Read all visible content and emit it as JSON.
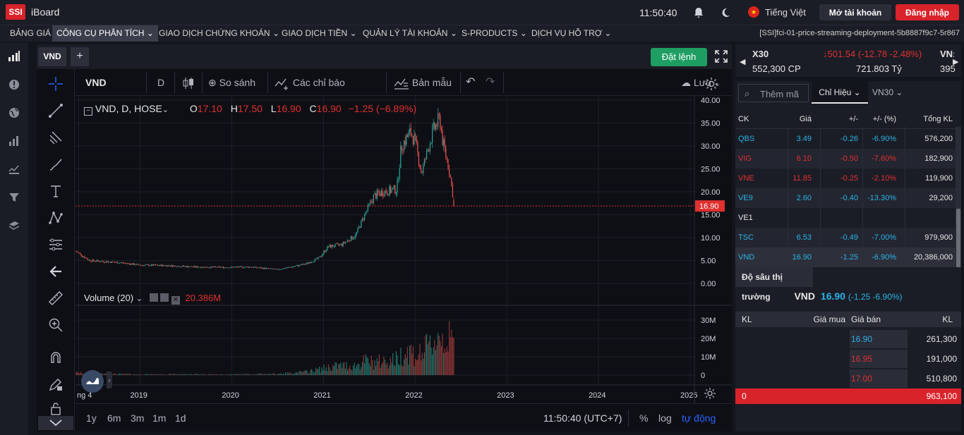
{
  "header": {
    "logo": "SSI",
    "app_name": "iBoard",
    "clock": "11:50:40",
    "language": "Tiếng Việt",
    "open_account": "Mở tài khoản",
    "login": "Đăng nhập"
  },
  "menu": {
    "items": [
      "BẢNG GIÁ",
      "CÔNG CỤ PHÂN TÍCH",
      "GIAO DỊCH CHỨNG KHOÁN",
      "GIAO DỊCH TIỀN",
      "QUẢN LÝ TÀI KHOẢN",
      "S-PRODUCTS",
      "DỊCH VỤ HỖ TRỢ"
    ],
    "deployment": "[SSI]fci-01-price-streaming-deployment-5b8887f9c7-5r867"
  },
  "chart_tab": {
    "symbol": "VND",
    "add": "+",
    "order_button": "Đặt lệnh"
  },
  "toolbar": {
    "symbol": "VND",
    "interval": "D",
    "compare": "So sánh",
    "indicators": "Các chỉ báo",
    "templates": "Bản mẫu",
    "save": "Lưu"
  },
  "legend": {
    "title": "VND, D, HOSE",
    "o_label": "O",
    "o": "17.10",
    "h_label": "H",
    "h": "17.50",
    "l_label": "L",
    "l": "16.90",
    "c_label": "C",
    "c": "16.90",
    "change": "−1.25 (−6.89%)",
    "volume_label": "Volume (20)",
    "volume_value": "20.386M",
    "last_price": "16.90"
  },
  "chart_data": {
    "type": "candlestick",
    "price_axis": {
      "ticks": [
        "40.00",
        "35.00",
        "30.00",
        "25.00",
        "20.00",
        "15.00",
        "10.00",
        "5.00",
        "0.00"
      ],
      "ylim": [
        0,
        40
      ]
    },
    "volume_axis": {
      "ticks": [
        "30M",
        "20M",
        "10M",
        "0"
      ],
      "ylim": [
        0,
        30
      ]
    },
    "x_ticks": [
      "ng 4",
      "2019",
      "2020",
      "2021",
      "2022",
      "2023",
      "2024",
      "2025"
    ],
    "x": [
      2018.3,
      2018.45,
      2018.6,
      2018.8,
      2019.0,
      2019.3,
      2019.6,
      2019.9,
      2020.2,
      2020.5,
      2020.8,
      2020.95,
      2021.05,
      2021.2,
      2021.35,
      2021.45,
      2021.55,
      2021.65,
      2021.8,
      2021.85,
      2021.95,
      2022.0,
      2022.07,
      2022.15,
      2022.2,
      2022.27,
      2022.3,
      2022.37,
      2022.43
    ],
    "close": [
      7.0,
      5.0,
      4.8,
      4.5,
      4.0,
      3.9,
      3.6,
      3.5,
      3.6,
      3.0,
      4.2,
      5.5,
      8.0,
      8.5,
      10.5,
      15.0,
      19.0,
      20.0,
      20.5,
      30.0,
      33.0,
      31.0,
      24.0,
      30.0,
      33.5,
      36.0,
      31.0,
      25.0,
      16.9
    ],
    "volume": [
      1.5,
      1.0,
      0.8,
      0.6,
      0.5,
      0.5,
      0.6,
      0.4,
      0.6,
      0.8,
      2.0,
      3.5,
      5,
      6,
      6,
      9,
      8,
      9,
      10,
      13,
      16,
      12,
      14,
      18,
      21,
      26,
      24,
      22,
      20.386
    ],
    "last_price": 16.9
  },
  "ranges": {
    "r1": "1y",
    "r2": "6m",
    "r3": "3m",
    "r4": "1m",
    "r5": "1d",
    "time": "11:50:40 (UTC+7)",
    "percent": "%",
    "log": "log",
    "auto": "tự động"
  },
  "index": {
    "name": "X30",
    "change": "↓501.54 (-12.78 -2.48%)",
    "cut": "VN:",
    "volume": "552,300 CP",
    "value": "721.803 Tỷ",
    "count": "395"
  },
  "watch": {
    "add_placeholder": "Thêm mã",
    "group1": "Chỉ Hiệu",
    "group2": "VN30",
    "head": {
      "ck": "CK",
      "price": "Giá",
      "chg": "+/-",
      "pct": "+/- (%)",
      "vol": "Tổng KL"
    },
    "rows": [
      {
        "ck": "QBS",
        "price": "3.49",
        "chg": "-0.26",
        "pct": "-6.90%",
        "vol": "576,200",
        "color": "#2ab2e6"
      },
      {
        "ck": "VIG",
        "price": "6.10",
        "chg": "-0.50",
        "pct": "-7.60%",
        "vol": "182,900",
        "color": "#e03030"
      },
      {
        "ck": "VNE",
        "price": "11.85",
        "chg": "-0.25",
        "pct": "-2.10%",
        "vol": "119,900",
        "color": "#e03030"
      },
      {
        "ck": "VE9",
        "price": "2.60",
        "chg": "-0.40",
        "pct": "-13.30%",
        "vol": "29,200",
        "color": "#2ab2e6"
      },
      {
        "ck": "VE1",
        "price": "",
        "chg": "",
        "pct": "",
        "vol": "",
        "color": "#e6e6e6"
      },
      {
        "ck": "TSC",
        "price": "6.53",
        "chg": "-0.49",
        "pct": "-7.00%",
        "vol": "979,900",
        "color": "#2ab2e6"
      },
      {
        "ck": "VND",
        "price": "16.90",
        "chg": "-1.25",
        "pct": "-6.90%",
        "vol": "20,386,000",
        "color": "#2ab2e6"
      }
    ]
  },
  "depth": {
    "tab": "Độ sâu thị trường",
    "symbol": "VND",
    "quote": "16.90",
    "quote_change": "(-1.25 -6.90%)",
    "col_kl": "KL",
    "col_bid": "Giá mua",
    "col_ask": "Giá bán",
    "col_kl2": "KL",
    "asks": [
      {
        "price": "16.90",
        "vol": "261,300"
      },
      {
        "price": "16.95",
        "vol": "191,000"
      },
      {
        "price": "17.00",
        "vol": "510,800"
      }
    ],
    "total_bid": "0",
    "total_ask": "963,100"
  }
}
